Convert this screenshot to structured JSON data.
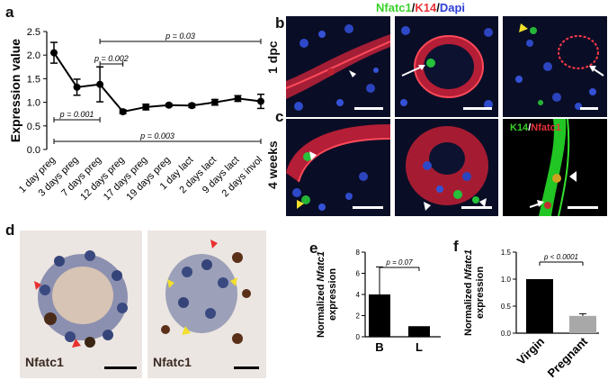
{
  "panels": {
    "a": "a",
    "b": "b",
    "c": "c",
    "d": "d",
    "e": "e",
    "f": "f"
  },
  "title": {
    "nfatc1": "Nfatc1",
    "k14": "K14",
    "dapi": "Dapi",
    "sep": "/"
  },
  "row_labels": {
    "b": "1 dpc",
    "c": "4 weeks"
  },
  "inset": {
    "k14": "K14",
    "sep": "/",
    "nf": "Nfatc1"
  },
  "ihc_labels": [
    "Nfatc1",
    "Nfatc1"
  ],
  "colors": {
    "green": "#39d12a",
    "red": "#e8323a",
    "blue": "#3a5bd0",
    "bar_black": "#000000",
    "bar_grey": "#a8a8a8"
  },
  "chart_data": [
    {
      "id": "a",
      "type": "line",
      "ylabel": "Expression value",
      "ylim": [
        0,
        2.5
      ],
      "yticks": [
        "0.0",
        "0.5",
        "1.0",
        "1.5",
        "2.0",
        "2.5"
      ],
      "categories": [
        "1 day preg",
        "3 days preg",
        "7 days preg",
        "12 days preg",
        "17 days preg",
        "19 days preg",
        "1 day lact",
        "2 days lact",
        "9 days lact",
        "2 days invol"
      ],
      "values": [
        2.05,
        1.32,
        1.38,
        0.8,
        0.9,
        0.94,
        0.93,
        1.0,
        1.08,
        1.02
      ],
      "errors": [
        0.22,
        0.17,
        0.37,
        0.04,
        0.06,
        0.03,
        0.04,
        0.06,
        0.06,
        0.15
      ],
      "annotations": [
        {
          "text": "p = 0.03",
          "from": 2,
          "to": 9
        },
        {
          "text": "p = 0.002",
          "from": 2,
          "to": 3
        },
        {
          "text": "p = 0.001",
          "from": 0,
          "to": 2
        },
        {
          "text": "p = 0.003",
          "from": 0,
          "to": 9
        }
      ]
    },
    {
      "id": "e",
      "type": "bar",
      "ylabel_parts": [
        "Normalized ",
        "Nfatc1",
        "expression"
      ],
      "ylim": [
        0,
        8
      ],
      "yticks": [
        "0",
        "2",
        "4",
        "6",
        "8"
      ],
      "categories": [
        "B",
        "L"
      ],
      "values": [
        4.0,
        1.0
      ],
      "errors": [
        2.6,
        0
      ],
      "annotation": "p = 0.07"
    },
    {
      "id": "f",
      "type": "bar",
      "ylabel_parts": [
        "Normalized ",
        "Nfatc1",
        "expression"
      ],
      "ylim": [
        0,
        1.5
      ],
      "yticks": [
        "0.0",
        "0.5",
        "1.0",
        "1.5"
      ],
      "categories": [
        "Virgin",
        "Pregnant"
      ],
      "values": [
        1.0,
        0.32
      ],
      "errors": [
        0,
        0.04
      ],
      "annotation": "p < 0.0001"
    }
  ]
}
